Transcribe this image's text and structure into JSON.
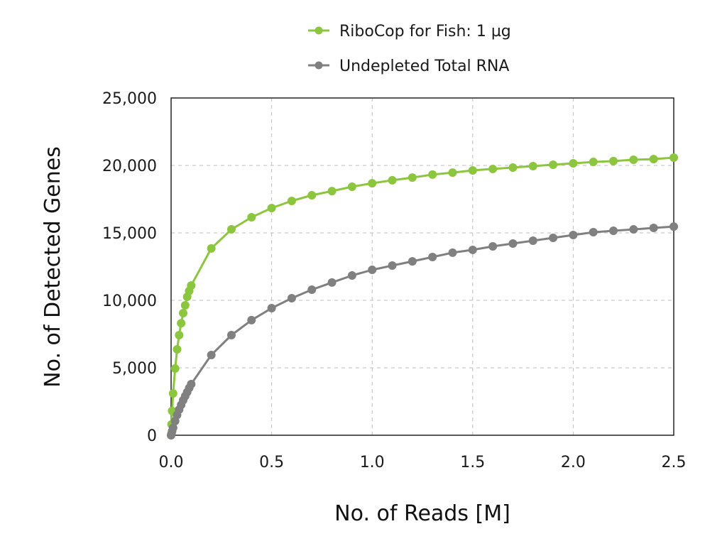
{
  "chart_data": {
    "type": "line",
    "title": "",
    "xlabel": "No. of Reads [M]",
    "ylabel": "No. of Detected Genes",
    "xlim": [
      0,
      2.5
    ],
    "ylim": [
      0,
      25000
    ],
    "x_ticks": [
      "0.0",
      "0.5",
      "1.0",
      "1.5",
      "2.0",
      "2.5"
    ],
    "y_ticks": [
      "0",
      "5,000",
      "10,000",
      "15,000",
      "20,000",
      "25,000"
    ],
    "grid": true,
    "legend_position": "top-center",
    "x": [
      0,
      0.002,
      0.005,
      0.01,
      0.02,
      0.03,
      0.04,
      0.05,
      0.06,
      0.07,
      0.08,
      0.09,
      0.1,
      0.2,
      0.3,
      0.4,
      0.5,
      0.6,
      0.7,
      0.8,
      0.9,
      1.0,
      1.1,
      1.2,
      1.3,
      1.4,
      1.5,
      1.6,
      1.7,
      1.8,
      1.9,
      2.0,
      2.1,
      2.2,
      2.3,
      2.4,
      2.5
    ],
    "series": [
      {
        "name": "RiboCop for Fish: 1 µg",
        "color": "#8cc63f",
        "values": [
          0,
          800,
          1800,
          3100,
          4950,
          6370,
          7420,
          8300,
          9050,
          9630,
          10260,
          10700,
          11100,
          13850,
          15260,
          16160,
          16840,
          17370,
          17790,
          18100,
          18420,
          18680,
          18900,
          19100,
          19320,
          19470,
          19630,
          19740,
          19840,
          19950,
          20050,
          20160,
          20260,
          20320,
          20420,
          20470,
          20580
        ]
      },
      {
        "name": "Undepleted Total RNA",
        "color": "#808080",
        "values": [
          0,
          120,
          300,
          550,
          1050,
          1500,
          1900,
          2250,
          2600,
          2900,
          3200,
          3500,
          3790,
          5950,
          7420,
          8530,
          9420,
          10160,
          10790,
          11320,
          11840,
          12260,
          12580,
          12890,
          13210,
          13530,
          13740,
          14000,
          14210,
          14420,
          14630,
          14840,
          15050,
          15160,
          15260,
          15370,
          15470
        ]
      }
    ]
  }
}
